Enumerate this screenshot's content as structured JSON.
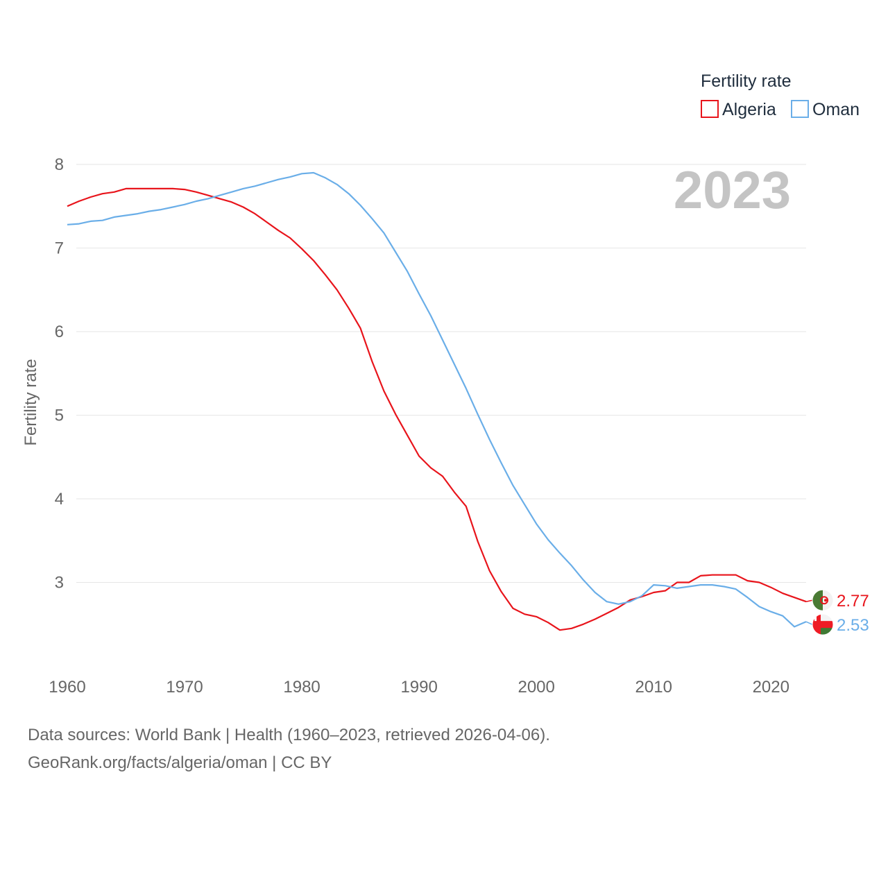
{
  "chart_data": {
    "type": "line",
    "legend_title": "Fertility rate",
    "ylabel": "Fertility rate",
    "year_label": "2023",
    "x_ticks": [
      "1960",
      "1970",
      "1980",
      "1990",
      "2000",
      "2010",
      "2020"
    ],
    "y_ticks": [
      "3",
      "4",
      "5",
      "6",
      "7",
      "8"
    ],
    "xlim": [
      1960,
      2023
    ],
    "ylim": [
      2.0,
      8.0
    ],
    "legend_position": "top-right",
    "series": [
      {
        "name": "Algeria",
        "color": "#e8141b",
        "end_value": "2.77",
        "flag_icon": "algeria-flag-icon",
        "points": [
          [
            1960,
            7.5
          ],
          [
            1961,
            7.56
          ],
          [
            1962,
            7.61
          ],
          [
            1963,
            7.65
          ],
          [
            1964,
            7.67
          ],
          [
            1965,
            7.71
          ],
          [
            1966,
            7.71
          ],
          [
            1967,
            7.71
          ],
          [
            1968,
            7.71
          ],
          [
            1969,
            7.71
          ],
          [
            1970,
            7.7
          ],
          [
            1971,
            7.67
          ],
          [
            1972,
            7.63
          ],
          [
            1973,
            7.59
          ],
          [
            1974,
            7.55
          ],
          [
            1975,
            7.49
          ],
          [
            1976,
            7.41
          ],
          [
            1977,
            7.31
          ],
          [
            1978,
            7.21
          ],
          [
            1979,
            7.12
          ],
          [
            1980,
            6.99
          ],
          [
            1981,
            6.85
          ],
          [
            1982,
            6.68
          ],
          [
            1983,
            6.5
          ],
          [
            1984,
            6.28
          ],
          [
            1985,
            6.04
          ],
          [
            1986,
            5.64
          ],
          [
            1987,
            5.29
          ],
          [
            1988,
            5.01
          ],
          [
            1989,
            4.76
          ],
          [
            1990,
            4.51
          ],
          [
            1991,
            4.37
          ],
          [
            1992,
            4.27
          ],
          [
            1993,
            4.08
          ],
          [
            1994,
            3.91
          ],
          [
            1995,
            3.49
          ],
          [
            1996,
            3.14
          ],
          [
            1997,
            2.89
          ],
          [
            1998,
            2.69
          ],
          [
            1999,
            2.62
          ],
          [
            2000,
            2.59
          ],
          [
            2001,
            2.52
          ],
          [
            2002,
            2.43
          ],
          [
            2003,
            2.45
          ],
          [
            2004,
            2.5
          ],
          [
            2005,
            2.56
          ],
          [
            2006,
            2.63
          ],
          [
            2007,
            2.7
          ],
          [
            2008,
            2.79
          ],
          [
            2009,
            2.83
          ],
          [
            2010,
            2.88
          ],
          [
            2011,
            2.9
          ],
          [
            2012,
            3.0
          ],
          [
            2013,
            3.0
          ],
          [
            2014,
            3.08
          ],
          [
            2015,
            3.09
          ],
          [
            2016,
            3.09
          ],
          [
            2017,
            3.09
          ],
          [
            2018,
            3.02
          ],
          [
            2019,
            3.0
          ],
          [
            2020,
            2.94
          ],
          [
            2021,
            2.87
          ],
          [
            2022,
            2.82
          ],
          [
            2023,
            2.77
          ]
        ]
      },
      {
        "name": "Oman",
        "color": "#6aaee8",
        "end_value": "2.53",
        "flag_icon": "oman-flag-icon",
        "points": [
          [
            1960,
            7.28
          ],
          [
            1961,
            7.29
          ],
          [
            1962,
            7.32
          ],
          [
            1963,
            7.33
          ],
          [
            1964,
            7.37
          ],
          [
            1965,
            7.39
          ],
          [
            1966,
            7.41
          ],
          [
            1967,
            7.44
          ],
          [
            1968,
            7.46
          ],
          [
            1969,
            7.49
          ],
          [
            1970,
            7.52
          ],
          [
            1971,
            7.56
          ],
          [
            1972,
            7.59
          ],
          [
            1973,
            7.63
          ],
          [
            1974,
            7.67
          ],
          [
            1975,
            7.71
          ],
          [
            1976,
            7.74
          ],
          [
            1977,
            7.78
          ],
          [
            1978,
            7.82
          ],
          [
            1979,
            7.85
          ],
          [
            1980,
            7.89
          ],
          [
            1981,
            7.9
          ],
          [
            1982,
            7.84
          ],
          [
            1983,
            7.76
          ],
          [
            1984,
            7.65
          ],
          [
            1985,
            7.51
          ],
          [
            1986,
            7.35
          ],
          [
            1987,
            7.18
          ],
          [
            1988,
            6.95
          ],
          [
            1989,
            6.72
          ],
          [
            1990,
            6.45
          ],
          [
            1991,
            6.19
          ],
          [
            1992,
            5.9
          ],
          [
            1993,
            5.61
          ],
          [
            1994,
            5.32
          ],
          [
            1995,
            5.01
          ],
          [
            1996,
            4.71
          ],
          [
            1997,
            4.43
          ],
          [
            1998,
            4.16
          ],
          [
            1999,
            3.93
          ],
          [
            2000,
            3.7
          ],
          [
            2001,
            3.51
          ],
          [
            2002,
            3.35
          ],
          [
            2003,
            3.2
          ],
          [
            2004,
            3.03
          ],
          [
            2005,
            2.88
          ],
          [
            2006,
            2.77
          ],
          [
            2007,
            2.74
          ],
          [
            2008,
            2.77
          ],
          [
            2009,
            2.84
          ],
          [
            2010,
            2.97
          ],
          [
            2011,
            2.96
          ],
          [
            2012,
            2.93
          ],
          [
            2013,
            2.95
          ],
          [
            2014,
            2.97
          ],
          [
            2015,
            2.97
          ],
          [
            2016,
            2.95
          ],
          [
            2017,
            2.92
          ],
          [
            2018,
            2.82
          ],
          [
            2019,
            2.71
          ],
          [
            2020,
            2.65
          ],
          [
            2021,
            2.6
          ],
          [
            2022,
            2.47
          ],
          [
            2023,
            2.53
          ]
        ]
      }
    ]
  },
  "footer": {
    "line1": "Data sources: World Bank | Health (1960–2023, retrieved 2026-04-06).",
    "line2": "GeoRank.org/facts/algeria/oman | CC BY"
  }
}
